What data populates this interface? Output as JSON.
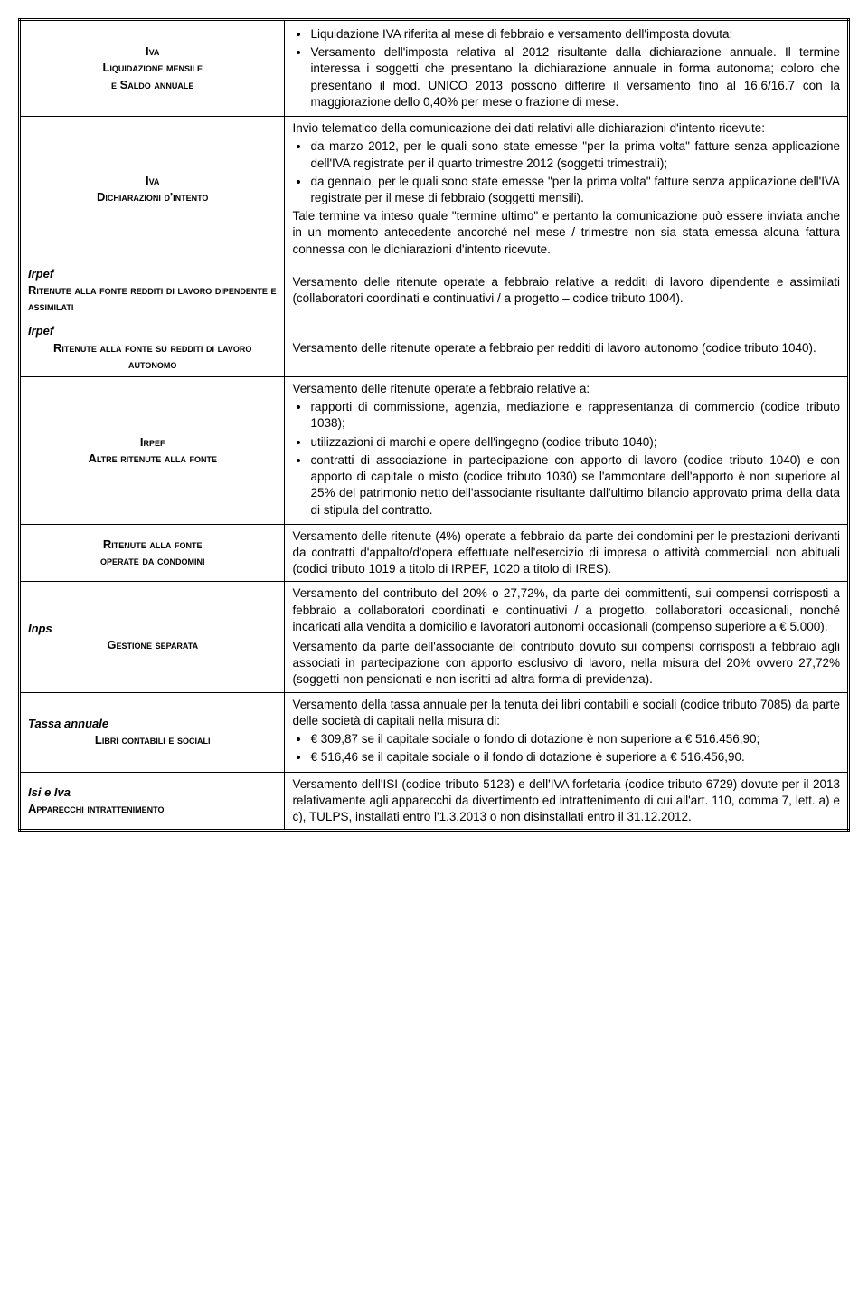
{
  "rows": [
    {
      "left": {
        "lines": [
          {
            "text": "Iva",
            "class": "sc bold"
          },
          {
            "text": "Liquidazione mensile",
            "class": "sc bold"
          },
          {
            "text": "e Saldo annuale",
            "class": "sc bold"
          }
        ]
      },
      "right": {
        "bullets": [
          "Liquidazione IVA riferita al mese di febbraio e versamento dell'imposta dovuta;",
          "Versamento dell'imposta relativa al 2012 risultante dalla dichiarazione annuale. Il termine interessa i soggetti che presentano la dichiarazione annuale in forma autonoma; coloro che presentano il mod. UNICO 2013 possono differire il versamento fino al 16.6/16.7 con la maggiorazione dello 0,40% per mese o frazione di mese."
        ]
      }
    },
    {
      "left": {
        "lines": [
          {
            "text": "Iva",
            "class": "sc bold"
          },
          {
            "text": "Dichiarazioni d'intento",
            "class": "sc bold"
          }
        ]
      },
      "right": {
        "intro": "Invio telematico della comunicazione dei dati relativi alle dichiarazioni d'intento ricevute:",
        "bullets": [
          "da marzo 2012, per le quali sono state emesse \"per la prima volta\" fatture senza applicazione dell'IVA registrate per il quarto trimestre 2012 (soggetti trimestrali);",
          "da gennaio, per le quali sono state emesse \"per la prima volta\" fatture senza applicazione dell'IVA registrate per il mese di febbraio (soggetti mensili)."
        ],
        "outro": "Tale termine va inteso quale \"termine ultimo\" e pertanto la comunicazione può essere inviata anche in un momento antecedente ancorché nel mese / trimestre non sia stata emessa alcuna fattura connessa con le dichiarazioni d'intento ricevute."
      }
    },
    {
      "left": {
        "align": "left",
        "lines": [
          {
            "text": "Irpef",
            "class": "italic bold"
          },
          {
            "text": "Ritenute alla fonte redditi di lavoro dipendente e assimilati",
            "class": "sc bold"
          }
        ]
      },
      "right": {
        "text": "Versamento delle ritenute operate a febbraio relative a redditi di lavoro dipendente e assimilati (collaboratori coordinati e continuativi / a progetto – codice tributo 1004)."
      }
    },
    {
      "left": {
        "align": "left",
        "lines": [
          {
            "text": "Irpef",
            "class": "italic bold"
          },
          {
            "text": "Ritenute alla fonte su redditi di lavoro autonomo",
            "class": "sc bold",
            "center": true
          }
        ]
      },
      "right": {
        "text": "Versamento delle ritenute operate a febbraio per redditi di lavoro autonomo (codice tributo 1040)."
      }
    },
    {
      "left": {
        "lines": [
          {
            "text": "Irpef",
            "class": "sc bold"
          },
          {
            "text": "Altre ritenute alla fonte",
            "class": "sc bold"
          }
        ]
      },
      "right": {
        "intro": "Versamento delle ritenute operate a febbraio relative a:",
        "bullets": [
          "rapporti di commissione, agenzia, mediazione e rappresentanza di commercio (codice tributo 1038);",
          "utilizzazioni di marchi e opere dell'ingegno (codice tributo 1040);",
          "contratti di associazione in partecipazione con apporto di lavoro (codice tributo 1040) e con apporto di capitale o misto (codice tributo 1030) se l'ammontare dell'apporto è non superiore al 25% del patrimonio netto dell'associante risultante dall'ultimo bilancio approvato prima della data di stipula del contratto."
        ]
      }
    },
    {
      "left": {
        "lines": [
          {
            "text": "Ritenute alla fonte",
            "class": "sc bold"
          },
          {
            "text": "operate da condomini",
            "class": "sc bold"
          }
        ]
      },
      "right": {
        "text": "Versamento delle ritenute (4%) operate a febbraio da parte dei condomini per le prestazioni derivanti da contratti d'appalto/d'opera effettuate nell'esercizio di impresa o attività commerciali non abituali (codici tributo 1019 a titolo di IRPEF, 1020 a titolo di IRES)."
      }
    },
    {
      "left": {
        "align": "left",
        "lines": [
          {
            "text": "Inps",
            "class": "italic bold"
          },
          {
            "text": "Gestione separata",
            "class": "sc bold",
            "center": true
          }
        ]
      },
      "right": {
        "paras": [
          "Versamento del contributo del 20% o 27,72%, da parte dei committenti, sui compensi corrisposti a febbraio a collaboratori coordinati e continuativi / a progetto, collaboratori occasionali, nonché incaricati alla vendita a domicilio e lavoratori autonomi occasionali (compenso superiore a € 5.000).",
          "Versamento da parte dell'associante del contributo dovuto sui compensi corrisposti a febbraio agli associati in partecipazione con apporto esclusivo di lavoro, nella misura del 20% ovvero 27,72% (soggetti non pensionati e non iscritti ad altra forma di previdenza)."
        ]
      }
    },
    {
      "left": {
        "align": "left",
        "lines": [
          {
            "text": "Tassa annuale",
            "class": "italic bold"
          },
          {
            "text": "Libri contabili e sociali",
            "class": "sc bold",
            "center": true
          }
        ]
      },
      "right": {
        "intro": "Versamento della tassa annuale per la tenuta dei libri contabili e sociali (codice tributo 7085) da parte delle società di capitali nella misura di:",
        "bullets": [
          "€ 309,87 se il capitale sociale o fondo di dotazione è non superiore a € 516.456,90;",
          "€ 516,46 se il capitale sociale o il fondo di dotazione è superiore a € 516.456,90."
        ]
      }
    },
    {
      "left": {
        "align": "left",
        "lines": [
          {
            "text": "Isi e Iva",
            "class": "italic bold"
          },
          {
            "text": "Apparecchi intrattenimento",
            "class": "sc bold"
          }
        ]
      },
      "right": {
        "text": "Versamento dell'ISI (codice tributo 5123) e dell'IVA forfetaria (codice tributo 6729) dovute per il 2013 relativamente agli apparecchi da divertimento ed intrattenimento di cui all'art. 110, comma 7, lett. a) e c), TULPS, installati entro l'1.3.2013 o non disinstallati entro il 31.12.2012."
      }
    }
  ]
}
